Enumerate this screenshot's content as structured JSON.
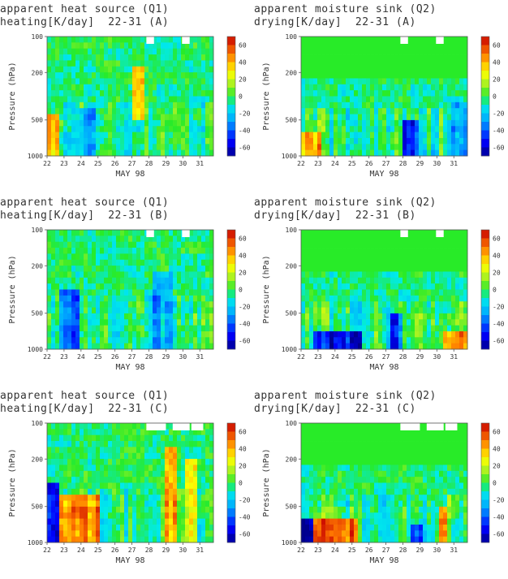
{
  "chart_data": [
    {
      "type": "heatmap",
      "title_line1": "apparent heat source (Q1)",
      "title_line2": "heating[K/day]  22-31 (A)",
      "xlabel": "MAY 98",
      "ylabel": "Pressure (hPa)",
      "x_ticks": [
        "22",
        "23",
        "24",
        "25",
        "26",
        "27",
        "28",
        "29",
        "30",
        "31"
      ],
      "y_ticks": [
        "100",
        "200",
        "500",
        "1000"
      ],
      "colorbar_ticks": [
        "60",
        "40",
        "20",
        "0",
        "-20",
        "-40",
        "-60"
      ],
      "zlim": [
        -70,
        70
      ],
      "pattern": "heat",
      "variant": 0
    },
    {
      "type": "heatmap",
      "title_line1": "apparent moisture sink (Q2)",
      "title_line2": "drying[K/day]  22-31 (A)",
      "xlabel": "MAY 98",
      "ylabel": "Pressure (hPa)",
      "x_ticks": [
        "22",
        "23",
        "24",
        "25",
        "26",
        "27",
        "28",
        "29",
        "30",
        "31"
      ],
      "y_ticks": [
        "100",
        "200",
        "500",
        "1000"
      ],
      "colorbar_ticks": [
        "60",
        "40",
        "20",
        "0",
        "-20",
        "-40",
        "-60"
      ],
      "zlim": [
        -70,
        70
      ],
      "pattern": "moist",
      "variant": 0
    },
    {
      "type": "heatmap",
      "title_line1": "apparent heat source (Q1)",
      "title_line2": "heating[K/day]  22-31 (B)",
      "xlabel": "MAY 98",
      "ylabel": "Pressure (hPa)",
      "x_ticks": [
        "22",
        "23",
        "24",
        "25",
        "26",
        "27",
        "28",
        "29",
        "30",
        "31"
      ],
      "y_ticks": [
        "100",
        "200",
        "500",
        "1000"
      ],
      "colorbar_ticks": [
        "60",
        "40",
        "20",
        "0",
        "-20",
        "-40",
        "-60"
      ],
      "zlim": [
        -70,
        70
      ],
      "pattern": "heat",
      "variant": 1
    },
    {
      "type": "heatmap",
      "title_line1": "apparent moisture sink (Q2)",
      "title_line2": "drying[K/day]  22-31 (B)",
      "xlabel": "MAY 98",
      "ylabel": "Pressure (hPa)",
      "x_ticks": [
        "22",
        "23",
        "24",
        "25",
        "26",
        "27",
        "28",
        "29",
        "30",
        "31"
      ],
      "y_ticks": [
        "100",
        "200",
        "500",
        "1000"
      ],
      "colorbar_ticks": [
        "60",
        "40",
        "20",
        "0",
        "-20",
        "-40",
        "-60"
      ],
      "zlim": [
        -70,
        70
      ],
      "pattern": "moist",
      "variant": 1
    },
    {
      "type": "heatmap",
      "title_line1": "apparent heat source (Q1)",
      "title_line2": "heating[K/day]  22-31 (C)",
      "xlabel": "MAY 98",
      "ylabel": "Pressure (hPa)",
      "x_ticks": [
        "22",
        "23",
        "24",
        "25",
        "26",
        "27",
        "28",
        "29",
        "30",
        "31"
      ],
      "y_ticks": [
        "100",
        "200",
        "500",
        "1000"
      ],
      "colorbar_ticks": [
        "60",
        "40",
        "20",
        "0",
        "-20",
        "-40",
        "-60"
      ],
      "zlim": [
        -70,
        70
      ],
      "pattern": "heat",
      "variant": 2
    },
    {
      "type": "heatmap",
      "title_line1": "apparent moisture sink (Q2)",
      "title_line2": "drying[K/day]  22-31 (C)",
      "xlabel": "MAY 98",
      "ylabel": "Pressure (hPa)",
      "x_ticks": [
        "22",
        "23",
        "24",
        "25",
        "26",
        "27",
        "28",
        "29",
        "30",
        "31"
      ],
      "y_ticks": [
        "100",
        "200",
        "500",
        "1000"
      ],
      "colorbar_ticks": [
        "60",
        "40",
        "20",
        "0",
        "-20",
        "-40",
        "-60"
      ],
      "zlim": [
        -70,
        70
      ],
      "pattern": "moist",
      "variant": 2
    }
  ]
}
